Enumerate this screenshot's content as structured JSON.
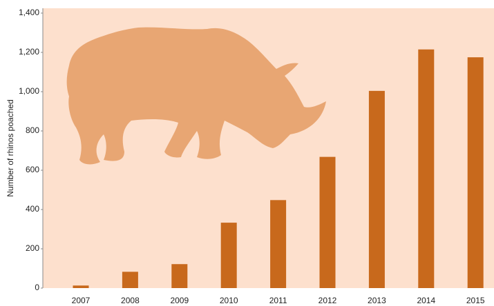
{
  "chart_data": {
    "type": "bar",
    "y_label": "Number of rhinos poached",
    "categories": [
      "2007",
      "2008",
      "2009",
      "2010",
      "2011",
      "2012",
      "2013",
      "2014",
      "2015"
    ],
    "values": [
      13,
      83,
      122,
      333,
      448,
      668,
      1004,
      1215,
      1175
    ],
    "color": "#c8691c",
    "ylim": [
      0,
      1400
    ],
    "yticks": [
      0,
      200,
      400,
      600,
      800,
      {
        "value": 1000,
        "label": "1,000"
      },
      {
        "value": 1200,
        "label": "1,200"
      },
      {
        "value": 1400,
        "label": "1,400"
      }
    ]
  }
}
